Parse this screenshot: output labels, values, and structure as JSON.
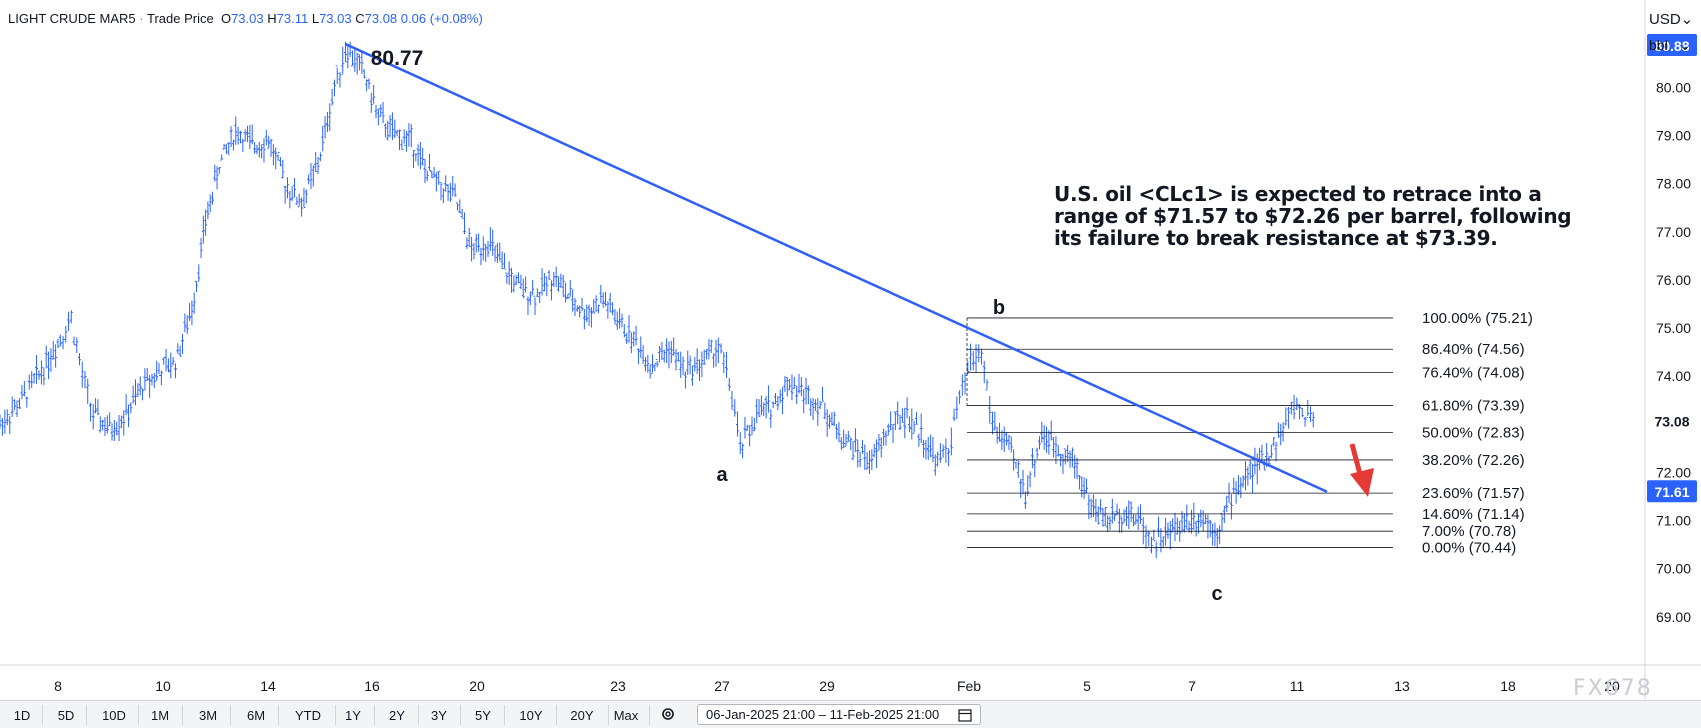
{
  "legend": {
    "symbol": "LIGHT CRUDE MAR5",
    "separator": "·",
    "price_type": "Trade Price",
    "o_label": "O",
    "o_value": "73.03",
    "h_label": "H",
    "h_value": "73.11",
    "l_label": "L",
    "l_value": "73.03",
    "c_label": "C",
    "c_value": "73.08",
    "change": "0.06 (+0.08%)"
  },
  "currency": "USD",
  "unit": "bbl",
  "chart_data": {
    "type": "ohlc",
    "instrument": "LIGHT CRUDE MAR5",
    "y_ticks": [
      "80.00",
      "79.00",
      "78.00",
      "77.00",
      "76.00",
      "75.00",
      "74.00",
      "73.00",
      "72.00",
      "71.00",
      "70.00",
      "69.00"
    ],
    "ylim": [
      68.0,
      81.4
    ],
    "x_ticks": [
      "8",
      "10",
      "14",
      "16",
      "20",
      "23",
      "27",
      "29",
      "Feb",
      "5",
      "7",
      "11",
      "13",
      "18",
      "20"
    ],
    "price_badges": [
      {
        "label": "80.88",
        "value": 80.88,
        "color": "#2962ff"
      },
      {
        "label": "73.08",
        "value": 73.08,
        "color": "#ffffff"
      },
      {
        "label": "71.61",
        "value": 71.61,
        "color": "#2962ff"
      }
    ],
    "series_path": [
      [
        0,
        73.0
      ],
      [
        0.8,
        73.5
      ],
      [
        1.6,
        74.2
      ],
      [
        2.2,
        74.8
      ],
      [
        2.6,
        75.2
      ],
      [
        3.0,
        74.0
      ],
      [
        3.4,
        73.2
      ],
      [
        4.0,
        72.9
      ],
      [
        4.6,
        73.2
      ],
      [
        5.2,
        73.8
      ],
      [
        5.8,
        74.1
      ],
      [
        6.4,
        74.3
      ],
      [
        7.0,
        75.4
      ],
      [
        7.5,
        77.2
      ],
      [
        8.0,
        78.4
      ],
      [
        8.6,
        79.1
      ],
      [
        9.2,
        78.8
      ],
      [
        9.8,
        78.9
      ],
      [
        10.4,
        78.0
      ],
      [
        11.0,
        77.6
      ],
      [
        11.6,
        78.4
      ],
      [
        12.2,
        80.0
      ],
      [
        12.6,
        80.8
      ],
      [
        13.2,
        80.4
      ],
      [
        13.8,
        79.4
      ],
      [
        14.4,
        79.0
      ],
      [
        15.0,
        78.9
      ],
      [
        15.5,
        78.3
      ],
      [
        16.0,
        78.0
      ],
      [
        16.6,
        77.7
      ],
      [
        17.2,
        76.6
      ],
      [
        17.8,
        76.8
      ],
      [
        18.4,
        76.2
      ],
      [
        19.0,
        75.8
      ],
      [
        19.6,
        75.7
      ],
      [
        20.2,
        76.1
      ],
      [
        20.8,
        75.6
      ],
      [
        21.4,
        75.3
      ],
      [
        22.0,
        75.6
      ],
      [
        22.6,
        75.1
      ],
      [
        23.2,
        74.7
      ],
      [
        23.8,
        74.2
      ],
      [
        24.4,
        74.6
      ],
      [
        25.0,
        74.1
      ],
      [
        25.6,
        74.3
      ],
      [
        26.2,
        74.6
      ],
      [
        26.6,
        73.9
      ],
      [
        27.0,
        72.5
      ],
      [
        27.6,
        73.2
      ],
      [
        28.2,
        73.4
      ],
      [
        28.8,
        73.9
      ],
      [
        29.4,
        73.6
      ],
      [
        30.0,
        73.4
      ],
      [
        30.6,
        72.8
      ],
      [
        31.2,
        72.5
      ],
      [
        31.8,
        72.2
      ],
      [
        32.4,
        72.9
      ],
      [
        33.0,
        73.2
      ],
      [
        33.6,
        72.8
      ],
      [
        34.2,
        72.2
      ],
      [
        34.6,
        72.5
      ],
      [
        35.0,
        73.5
      ],
      [
        35.4,
        74.3
      ],
      [
        35.8,
        74.5
      ],
      [
        36.2,
        73.0
      ],
      [
        36.8,
        72.5
      ],
      [
        37.4,
        71.6
      ],
      [
        38.0,
        72.8
      ],
      [
        38.6,
        72.5
      ],
      [
        39.2,
        72.2
      ],
      [
        39.8,
        71.3
      ],
      [
        40.4,
        71.0
      ],
      [
        41.0,
        71.2
      ],
      [
        41.6,
        71.0
      ],
      [
        42.0,
        70.6
      ],
      [
        42.6,
        70.7
      ],
      [
        43.2,
        71.0
      ],
      [
        43.8,
        71.1
      ],
      [
        44.4,
        70.8
      ],
      [
        45.0,
        71.6
      ],
      [
        45.6,
        72.0
      ],
      [
        46.2,
        72.3
      ],
      [
        46.8,
        72.9
      ],
      [
        47.2,
        73.4
      ],
      [
        47.6,
        73.2
      ],
      [
        48.0,
        73.1
      ]
    ],
    "x_domain": [
      0,
      60
    ],
    "trendline": {
      "start": [
        12.6,
        80.9
      ],
      "end": [
        48.4,
        71.6
      ],
      "color": "#2f5ff5"
    },
    "fibonacci": [
      {
        "level": "100.00%",
        "price": 75.21,
        "label": "100.00% (75.21)"
      },
      {
        "level": "86.40%",
        "price": 74.56,
        "label": "86.40% (74.56)"
      },
      {
        "level": "76.40%",
        "price": 74.08,
        "label": "76.40% (74.08)"
      },
      {
        "level": "61.80%",
        "price": 73.39,
        "label": "61.80% (73.39)"
      },
      {
        "level": "50.00%",
        "price": 72.83,
        "label": "50.00% (72.83)"
      },
      {
        "level": "38.20%",
        "price": 72.26,
        "label": "38.20% (72.26)"
      },
      {
        "level": "23.60%",
        "price": 71.57,
        "label": "23.60% (71.57)"
      },
      {
        "level": "14.60%",
        "price": 71.14,
        "label": "14.60% (71.14)"
      },
      {
        "level": "7.00%",
        "price": 70.78,
        "label": "7.00% (70.78)"
      },
      {
        "level": "0.00%",
        "price": 70.44,
        "label": "0.00% (70.44)"
      }
    ],
    "wave_labels": [
      "80.77",
      "a",
      "b",
      "c"
    ],
    "annotation_lines": [
      "U.S. oil <CLc1> is expected to retrace into a",
      "range of $71.57 to $72.26 per barrel, following",
      "its failure to break resistance at $73.39."
    ],
    "arrow_color": "#e53935"
  },
  "toolbar": {
    "periods": [
      "1D",
      "5D",
      "10D",
      "1M",
      "3M",
      "6M",
      "YTD",
      "1Y",
      "2Y",
      "3Y",
      "5Y",
      "10Y",
      "20Y",
      "Max"
    ],
    "date_range": "06-Jan-2025 21:00 – 11-Feb-2025 21:00"
  },
  "watermark": "FX678"
}
